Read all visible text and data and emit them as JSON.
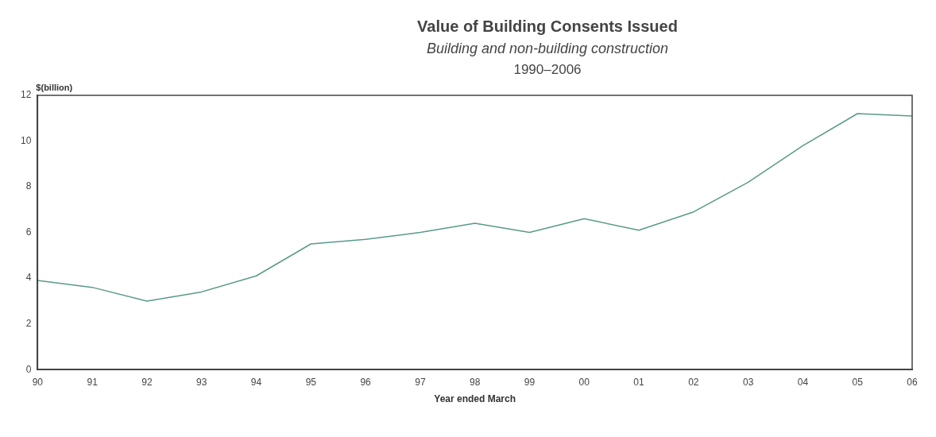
{
  "chart_data": {
    "type": "line",
    "title": "Value of Building Consents Issued",
    "subtitle": "Building and non-building construction",
    "annotations": [
      "1990–2006"
    ],
    "ylabel": "$(billion)",
    "xlabel": "Year ended March",
    "categories": [
      "90",
      "91",
      "92",
      "93",
      "94",
      "95",
      "96",
      "97",
      "98",
      "99",
      "00",
      "01",
      "02",
      "03",
      "04",
      "05",
      "06"
    ],
    "series": [
      {
        "color": "#5a9a8a",
        "values": [
          3.9,
          3.6,
          3.0,
          3.4,
          4.1,
          5.5,
          5.7,
          6.0,
          6.4,
          6.0,
          6.6,
          6.1,
          6.9,
          8.2,
          9.8,
          11.2,
          11.1
        ]
      }
    ],
    "ylim": [
      0,
      12
    ],
    "yticks": [
      0,
      2,
      4,
      6,
      8,
      10,
      12
    ],
    "grid": false,
    "legend": false,
    "marker": "none",
    "line_style": "solid"
  }
}
